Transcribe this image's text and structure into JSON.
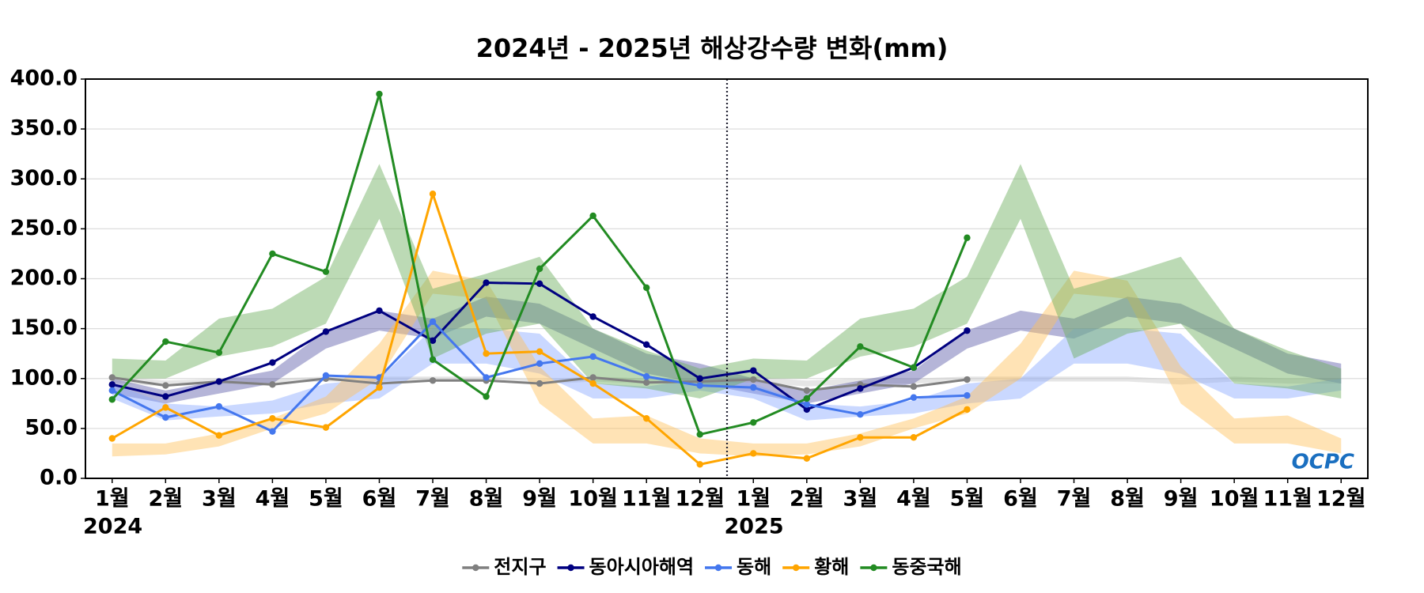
{
  "chart_data": {
    "type": "line",
    "title": "2024년 - 2025년 해상강수량 변화(mm)",
    "categories": [
      "1월",
      "2월",
      "3월",
      "4월",
      "5월",
      "6월",
      "7월",
      "8월",
      "9월",
      "10월",
      "11월",
      "12월",
      "1월",
      "2월",
      "3월",
      "4월",
      "5월",
      "6월",
      "7월",
      "8월",
      "9월",
      "10월",
      "11월",
      "12월"
    ],
    "year_labels": [
      "2024",
      "2025"
    ],
    "logo": "OCPC",
    "ylim": [
      0,
      400
    ],
    "yticks": [
      {
        "value": 0,
        "label": "0.0"
      },
      {
        "value": 50,
        "label": "50.0"
      },
      {
        "value": 100,
        "label": "100.0"
      },
      {
        "value": 150,
        "label": "150.0"
      },
      {
        "value": 200,
        "label": "200.0"
      },
      {
        "value": 250,
        "label": "250.0"
      },
      {
        "value": 300,
        "label": "300.0"
      },
      {
        "value": 350,
        "label": "350.0"
      },
      {
        "value": 400,
        "label": "400.0"
      }
    ],
    "grid": true,
    "legend": "bottom",
    "series": [
      {
        "name": "전지구",
        "color": "#808080",
        "band_color": "#c8c8c8",
        "values": [
          101,
          93,
          97,
          94,
          100,
          95,
          98,
          98,
          95,
          101,
          96,
          97,
          99,
          88,
          94,
          92,
          99,
          null,
          null,
          null,
          null,
          null,
          null,
          null
        ],
        "range_low": [
          96,
          92,
          95,
          95,
          97,
          97,
          97,
          97,
          94,
          97,
          95,
          95,
          96,
          92,
          95,
          95,
          97,
          97,
          97,
          97,
          94,
          97,
          95,
          95
        ],
        "range_high": [
          102,
          98,
          100,
          100,
          102,
          102,
          102,
          102,
          99,
          102,
          100,
          100,
          102,
          98,
          100,
          100,
          102,
          102,
          102,
          102,
          99,
          102,
          100,
          100
        ]
      },
      {
        "name": "동아시아해역",
        "color": "#000080",
        "band_color": "#5a5aa8",
        "values": [
          94,
          82,
          97,
          116,
          147,
          168,
          138,
          196,
          195,
          162,
          134,
          100,
          108,
          69,
          90,
          111,
          148,
          null,
          null,
          null,
          null,
          null,
          null,
          null
        ],
        "range_low": [
          85,
          75,
          85,
          95,
          130,
          148,
          140,
          162,
          155,
          130,
          105,
          95,
          85,
          75,
          85,
          95,
          130,
          148,
          140,
          162,
          155,
          130,
          105,
          95
        ],
        "range_high": [
          100,
          88,
          98,
          108,
          148,
          168,
          160,
          182,
          175,
          150,
          125,
          115,
          100,
          88,
          98,
          108,
          148,
          168,
          160,
          182,
          175,
          150,
          125,
          115
        ]
      },
      {
        "name": "동해",
        "color": "#4477ee",
        "band_color": "#8aa8ff",
        "values": [
          88,
          61,
          72,
          47,
          103,
          101,
          157,
          101,
          115,
          122,
          102,
          93,
          91,
          74,
          64,
          81,
          83,
          null,
          null,
          null,
          null,
          null,
          null,
          null
        ],
        "range_low": [
          80,
          58,
          62,
          65,
          75,
          80,
          115,
          115,
          105,
          80,
          80,
          88,
          80,
          58,
          62,
          65,
          75,
          80,
          115,
          115,
          105,
          80,
          80,
          88
        ],
        "range_high": [
          95,
          75,
          72,
          78,
          95,
          100,
          150,
          150,
          145,
          95,
          92,
          100,
          95,
          75,
          72,
          78,
          95,
          100,
          150,
          150,
          145,
          95,
          92,
          100
        ]
      },
      {
        "name": "황해",
        "color": "#ffa500",
        "band_color": "#ffc25a",
        "values": [
          40,
          71,
          43,
          60,
          51,
          91,
          285,
          125,
          127,
          95,
          60,
          14,
          25,
          20,
          41,
          41,
          69,
          null,
          null,
          null,
          null,
          null,
          null,
          null
        ],
        "range_low": [
          22,
          24,
          32,
          50,
          65,
          100,
          185,
          180,
          75,
          35,
          35,
          25,
          22,
          24,
          32,
          50,
          65,
          100,
          185,
          180,
          75,
          35,
          35,
          25
        ],
        "range_high": [
          35,
          35,
          45,
          60,
          82,
          135,
          208,
          198,
          112,
          60,
          63,
          40,
          35,
          35,
          45,
          60,
          82,
          135,
          208,
          198,
          112,
          60,
          63,
          40
        ]
      },
      {
        "name": "동중국해",
        "color": "#228b22",
        "band_color": "#6aad5c",
        "values": [
          79,
          137,
          126,
          225,
          207,
          385,
          119,
          82,
          210,
          263,
          191,
          44,
          56,
          80,
          132,
          111,
          241,
          null,
          null,
          null,
          null,
          null,
          null,
          null
        ],
        "range_low": [
          100,
          100,
          122,
          132,
          155,
          260,
          120,
          145,
          155,
          95,
          90,
          80,
          100,
          100,
          122,
          132,
          155,
          260,
          120,
          145,
          155,
          95,
          90,
          80
        ],
        "range_high": [
          120,
          118,
          160,
          170,
          202,
          315,
          190,
          205,
          222,
          150,
          128,
          110,
          120,
          118,
          160,
          170,
          202,
          315,
          190,
          205,
          222,
          150,
          128,
          110
        ]
      }
    ]
  }
}
